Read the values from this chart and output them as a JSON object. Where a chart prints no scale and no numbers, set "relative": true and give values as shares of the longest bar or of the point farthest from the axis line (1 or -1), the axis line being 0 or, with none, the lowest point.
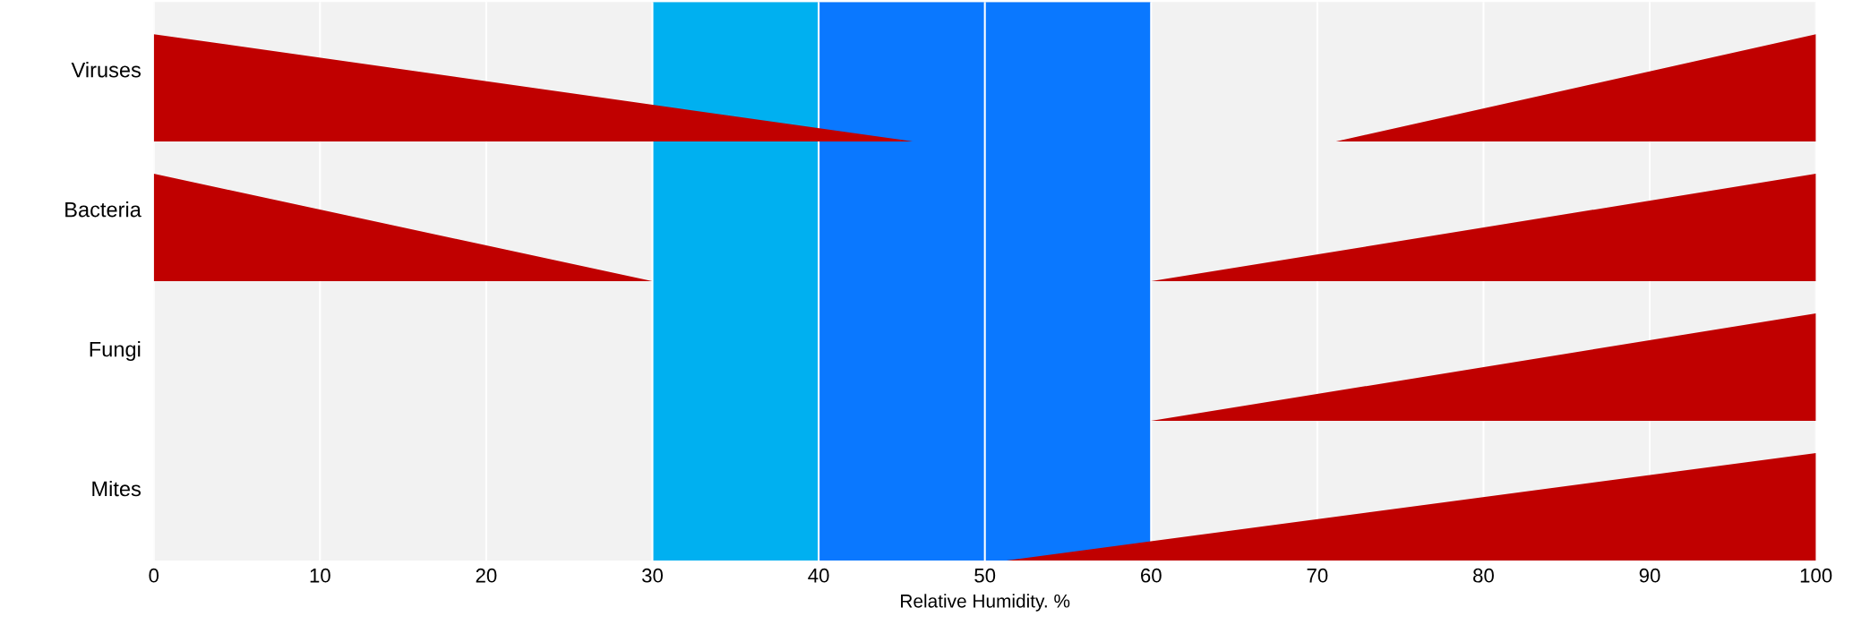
{
  "chart_data": [
    {
      "type": "area",
      "ylabel": "Viruses",
      "relative": true,
      "xlim": [
        0,
        100
      ],
      "xticks": [
        0,
        10,
        20,
        30,
        40,
        50,
        60,
        70,
        80,
        90,
        100
      ],
      "tick_labels": false,
      "grid": "x",
      "bands": [
        {
          "axis": "x",
          "from": 30,
          "to": 40,
          "color": "#00b0f0"
        },
        {
          "axis": "x",
          "from": 40,
          "to": 60,
          "color": "#0a78ff"
        }
      ],
      "series": [
        {
          "color": "#c00000",
          "x": [
            0,
            45.7,
            71.1,
            100
          ],
          "values": [
            1,
            0,
            0,
            1
          ]
        }
      ]
    },
    {
      "type": "area",
      "ylabel": "Bacteria",
      "relative": true,
      "xlim": [
        0,
        100
      ],
      "xticks": [
        0,
        10,
        20,
        30,
        40,
        50,
        60,
        70,
        80,
        90,
        100
      ],
      "tick_labels": false,
      "grid": "x",
      "bands": [
        {
          "axis": "x",
          "from": 30,
          "to": 40,
          "color": "#00b0f0"
        },
        {
          "axis": "x",
          "from": 40,
          "to": 60,
          "color": "#0a78ff"
        }
      ],
      "series": [
        {
          "color": "#c00000",
          "x": [
            0,
            30,
            60,
            100
          ],
          "values": [
            1,
            0,
            0,
            1
          ]
        }
      ]
    },
    {
      "type": "area",
      "ylabel": "Fungi",
      "relative": true,
      "xlim": [
        0,
        100
      ],
      "xticks": [
        0,
        10,
        20,
        30,
        40,
        50,
        60,
        70,
        80,
        90,
        100
      ],
      "tick_labels": false,
      "grid": "x",
      "bands": [
        {
          "axis": "x",
          "from": 30,
          "to": 40,
          "color": "#00b0f0"
        },
        {
          "axis": "x",
          "from": 40,
          "to": 60,
          "color": "#0a78ff"
        }
      ],
      "series": [
        {
          "color": "#c00000",
          "x": [
            60,
            100
          ],
          "values": [
            0,
            1
          ]
        }
      ]
    },
    {
      "type": "area",
      "ylabel": "Mites",
      "xlabel": "Relative Humidity. %",
      "relative": true,
      "xlim": [
        0,
        100
      ],
      "xticks": [
        0,
        10,
        20,
        30,
        40,
        50,
        60,
        70,
        80,
        90,
        100
      ],
      "tick_labels": "x",
      "grid": "x",
      "bands": [
        {
          "axis": "x",
          "from": 30,
          "to": 40,
          "color": "#00b0f0"
        },
        {
          "axis": "x",
          "from": 40,
          "to": 60,
          "color": "#0a78ff"
        }
      ],
      "series": [
        {
          "color": "#c00000",
          "x": [
            51.3,
            100
          ],
          "values": [
            0,
            1
          ]
        }
      ]
    }
  ]
}
